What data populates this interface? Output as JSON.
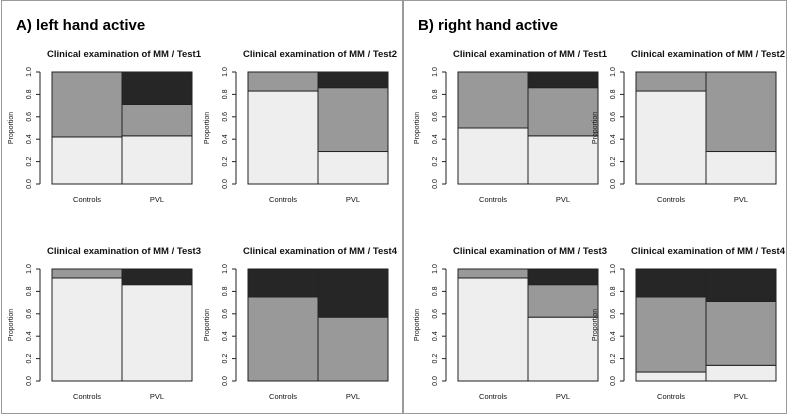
{
  "panels": [
    {
      "id": "a",
      "title": "A) left hand active"
    },
    {
      "id": "b",
      "title": "B) right hand active"
    }
  ],
  "colors": {
    "low": "#eeeeee",
    "mid": "#999999",
    "high": "#262626",
    "outline": "#222222"
  },
  "chart_data": [
    {
      "type": "bar",
      "stacked": true,
      "panel": "A) left hand active",
      "title": "Clinical examination of MM / Test1",
      "ylabel": "Proportion",
      "categories": [
        "Controls",
        "PVL"
      ],
      "ylim": [
        0,
        1
      ],
      "yticks": [
        "0.0",
        "0.2",
        "0.4",
        "0.6",
        "0.8",
        "1.0"
      ],
      "series": [
        {
          "color": "#eeeeee",
          "values": [
            0.42,
            0.43
          ]
        },
        {
          "color": "#999999",
          "values": [
            0.58,
            0.28
          ]
        },
        {
          "color": "#262626",
          "values": [
            0.0,
            0.29
          ]
        }
      ]
    },
    {
      "type": "bar",
      "stacked": true,
      "panel": "A) left hand active",
      "title": "Clinical examination of MM / Test2",
      "ylabel": "Proportion",
      "categories": [
        "Controls",
        "PVL"
      ],
      "ylim": [
        0,
        1
      ],
      "yticks": [
        "0.0",
        "0.2",
        "0.4",
        "0.6",
        "0.8",
        "1.0"
      ],
      "series": [
        {
          "color": "#eeeeee",
          "values": [
            0.83,
            0.29
          ]
        },
        {
          "color": "#999999",
          "values": [
            0.17,
            0.57
          ]
        },
        {
          "color": "#262626",
          "values": [
            0.0,
            0.14
          ]
        }
      ]
    },
    {
      "type": "bar",
      "stacked": true,
      "panel": "A) left hand active",
      "title": "Clinical examination of MM / Test3",
      "ylabel": "Proportion",
      "categories": [
        "Controls",
        "PVL"
      ],
      "ylim": [
        0,
        1
      ],
      "yticks": [
        "0.0",
        "0.2",
        "0.4",
        "0.6",
        "0.8",
        "1.0"
      ],
      "series": [
        {
          "color": "#eeeeee",
          "values": [
            0.92,
            0.86
          ]
        },
        {
          "color": "#999999",
          "values": [
            0.08,
            0.0
          ]
        },
        {
          "color": "#262626",
          "values": [
            0.0,
            0.14
          ]
        }
      ]
    },
    {
      "type": "bar",
      "stacked": true,
      "panel": "A) left hand active",
      "title": "Clinical examination of MM / Test4",
      "ylabel": "Proportion",
      "categories": [
        "Controls",
        "PVL"
      ],
      "ylim": [
        0,
        1
      ],
      "yticks": [
        "0.0",
        "0.2",
        "0.4",
        "0.6",
        "0.8",
        "1.0"
      ],
      "series": [
        {
          "color": "#eeeeee",
          "values": [
            0.0,
            0.0
          ]
        },
        {
          "color": "#999999",
          "values": [
            0.75,
            0.57
          ]
        },
        {
          "color": "#262626",
          "values": [
            0.25,
            0.43
          ]
        }
      ]
    },
    {
      "type": "bar",
      "stacked": true,
      "panel": "B) right hand active",
      "title": "Clinical examination of MM / Test1",
      "ylabel": "Proportion",
      "categories": [
        "Controls",
        "PVL"
      ],
      "ylim": [
        0,
        1
      ],
      "yticks": [
        "0.0",
        "0.2",
        "0.4",
        "0.6",
        "0.8",
        "1.0"
      ],
      "series": [
        {
          "color": "#eeeeee",
          "values": [
            0.5,
            0.43
          ]
        },
        {
          "color": "#999999",
          "values": [
            0.5,
            0.43
          ]
        },
        {
          "color": "#262626",
          "values": [
            0.0,
            0.14
          ]
        }
      ]
    },
    {
      "type": "bar",
      "stacked": true,
      "panel": "B) right hand active",
      "title": "Clinical examination of MM / Test2",
      "ylabel": "Proportion",
      "categories": [
        "Controls",
        "PVL"
      ],
      "ylim": [
        0,
        1
      ],
      "yticks": [
        "0.0",
        "0.2",
        "0.4",
        "0.6",
        "0.8",
        "1.0"
      ],
      "series": [
        {
          "color": "#eeeeee",
          "values": [
            0.83,
            0.29
          ]
        },
        {
          "color": "#999999",
          "values": [
            0.17,
            0.71
          ]
        },
        {
          "color": "#262626",
          "values": [
            0.0,
            0.0
          ]
        }
      ]
    },
    {
      "type": "bar",
      "stacked": true,
      "panel": "B) right hand active",
      "title": "Clinical examination of MM / Test3",
      "ylabel": "Proportion",
      "categories": [
        "Controls",
        "PVL"
      ],
      "ylim": [
        0,
        1
      ],
      "yticks": [
        "0.0",
        "0.2",
        "0.4",
        "0.6",
        "0.8",
        "1.0"
      ],
      "series": [
        {
          "color": "#eeeeee",
          "values": [
            0.92,
            0.57
          ]
        },
        {
          "color": "#999999",
          "values": [
            0.08,
            0.29
          ]
        },
        {
          "color": "#262626",
          "values": [
            0.0,
            0.14
          ]
        }
      ]
    },
    {
      "type": "bar",
      "stacked": true,
      "panel": "B) right hand active",
      "title": "Clinical examination of MM / Test4",
      "ylabel": "Proportion",
      "categories": [
        "Controls",
        "PVL"
      ],
      "ylim": [
        0,
        1
      ],
      "yticks": [
        "0.0",
        "0.2",
        "0.4",
        "0.6",
        "0.8",
        "1.0"
      ],
      "series": [
        {
          "color": "#eeeeee",
          "values": [
            0.08,
            0.14
          ]
        },
        {
          "color": "#999999",
          "values": [
            0.67,
            0.57
          ]
        },
        {
          "color": "#262626",
          "values": [
            0.25,
            0.29
          ]
        }
      ]
    }
  ]
}
